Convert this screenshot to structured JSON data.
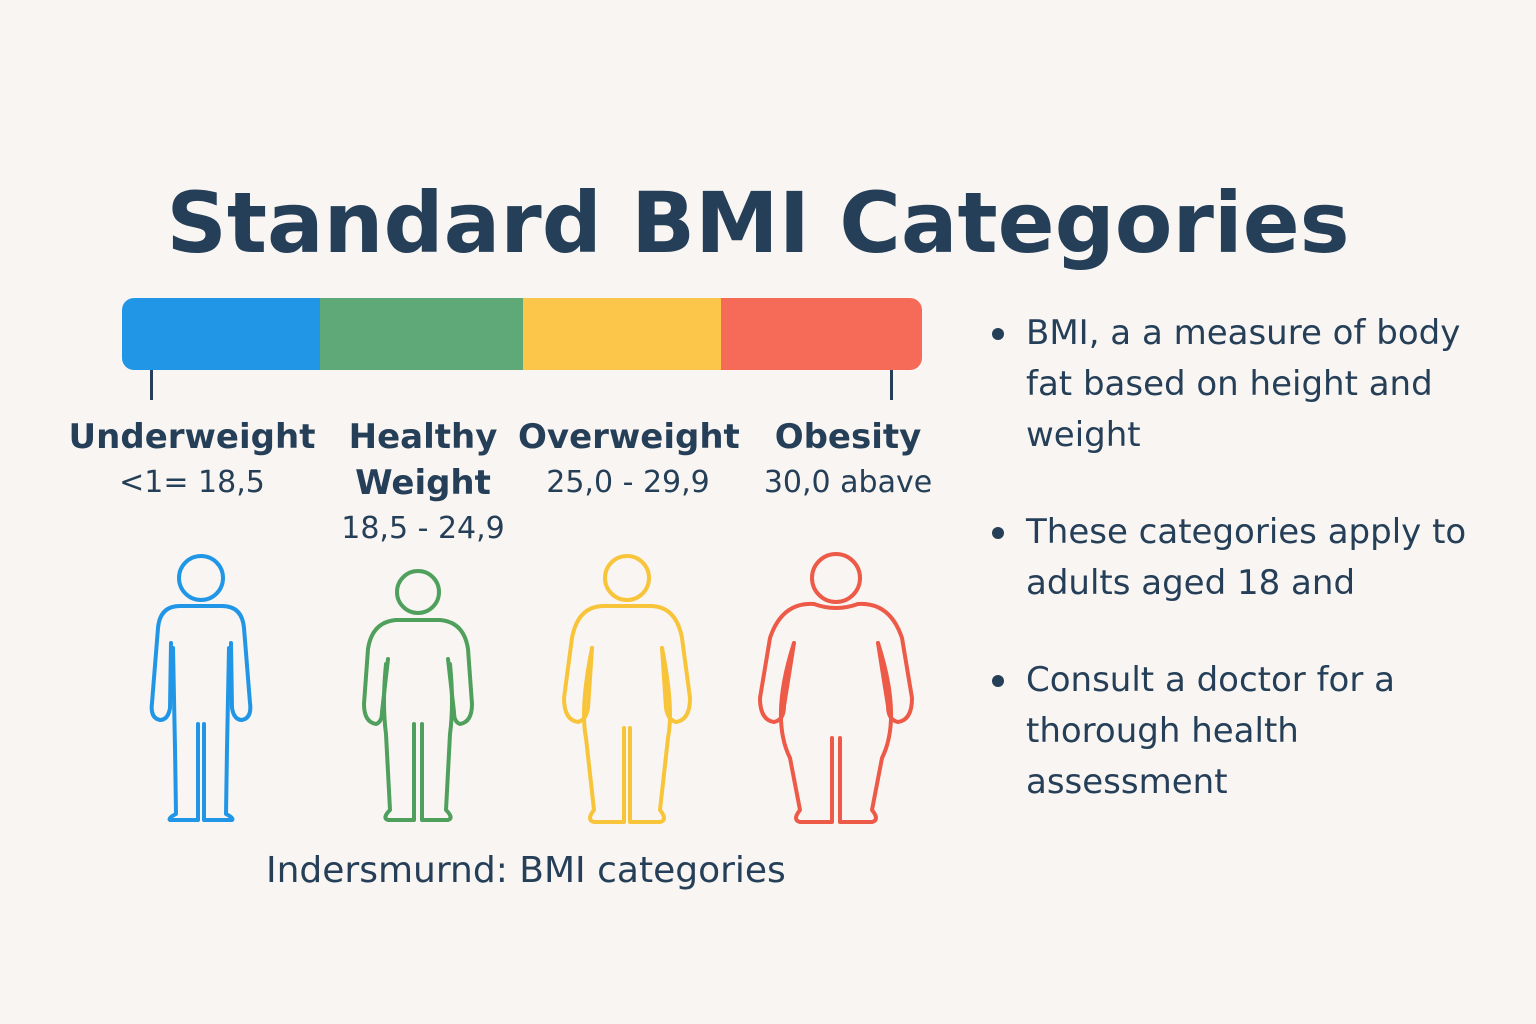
{
  "title": "Standard BMI Categories",
  "categories": [
    {
      "name": "Underweight",
      "range": "<1=  18,5",
      "color": "#2196e6"
    },
    {
      "name": "Healthy Weight",
      "range": "18,5 - 24,9",
      "color": "#5fa878"
    },
    {
      "name": "Overweight",
      "range": "25,0 - 29,9",
      "color": "#fbc64a"
    },
    {
      "name": "Obesity",
      "range": "30,0 abave",
      "color": "#f56b57"
    }
  ],
  "figure_strokes": [
    "#2196e6",
    "#4fa05c",
    "#f8c43a",
    "#ee5a48"
  ],
  "caption": "Indersmurnd: BMI categories",
  "notes": [
    "BMI, a a measure of body fat based on height and weight",
    "These categories apply to adults aged 18 and",
    "Consult a doctor for a thorough health assessment"
  ],
  "icons": [
    "person-underweight-icon",
    "person-healthy-icon",
    "person-overweight-icon",
    "person-obese-icon"
  ]
}
